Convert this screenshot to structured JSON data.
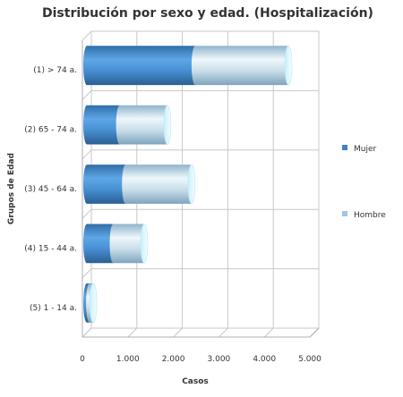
{
  "chart_data": {
    "type": "bar",
    "orientation": "horizontal",
    "stacked": true,
    "style": "3d-cylinder",
    "title": "Distribución por sexo y edad. (Hospitalización)",
    "xlabel": "Casos",
    "ylabel": "Grupos de Edad",
    "xlim": [
      0,
      5000
    ],
    "xticks": [
      {
        "value": 0,
        "label": "0"
      },
      {
        "value": 1000,
        "label": "1.000"
      },
      {
        "value": 2000,
        "label": "2.000"
      },
      {
        "value": 3000,
        "label": "3.000"
      },
      {
        "value": 4000,
        "label": "4.000"
      },
      {
        "value": 5000,
        "label": "5.000"
      }
    ],
    "categories": [
      "(1) > 74 a.",
      "(2) 65 - 74 a.",
      "(3) 45 - 64 a.",
      "(4) 15 - 44 a.",
      "(5) 1 - 14 a."
    ],
    "series": [
      {
        "name": "Mujer",
        "color": "#3d85c6",
        "values": [
          2380,
          720,
          850,
          580,
          60
        ]
      },
      {
        "name": "Hombre",
        "color": "#9fc5e8",
        "values": [
          2050,
          1050,
          1450,
          680,
          80
        ]
      }
    ],
    "grid": true,
    "legend_position": "right"
  }
}
